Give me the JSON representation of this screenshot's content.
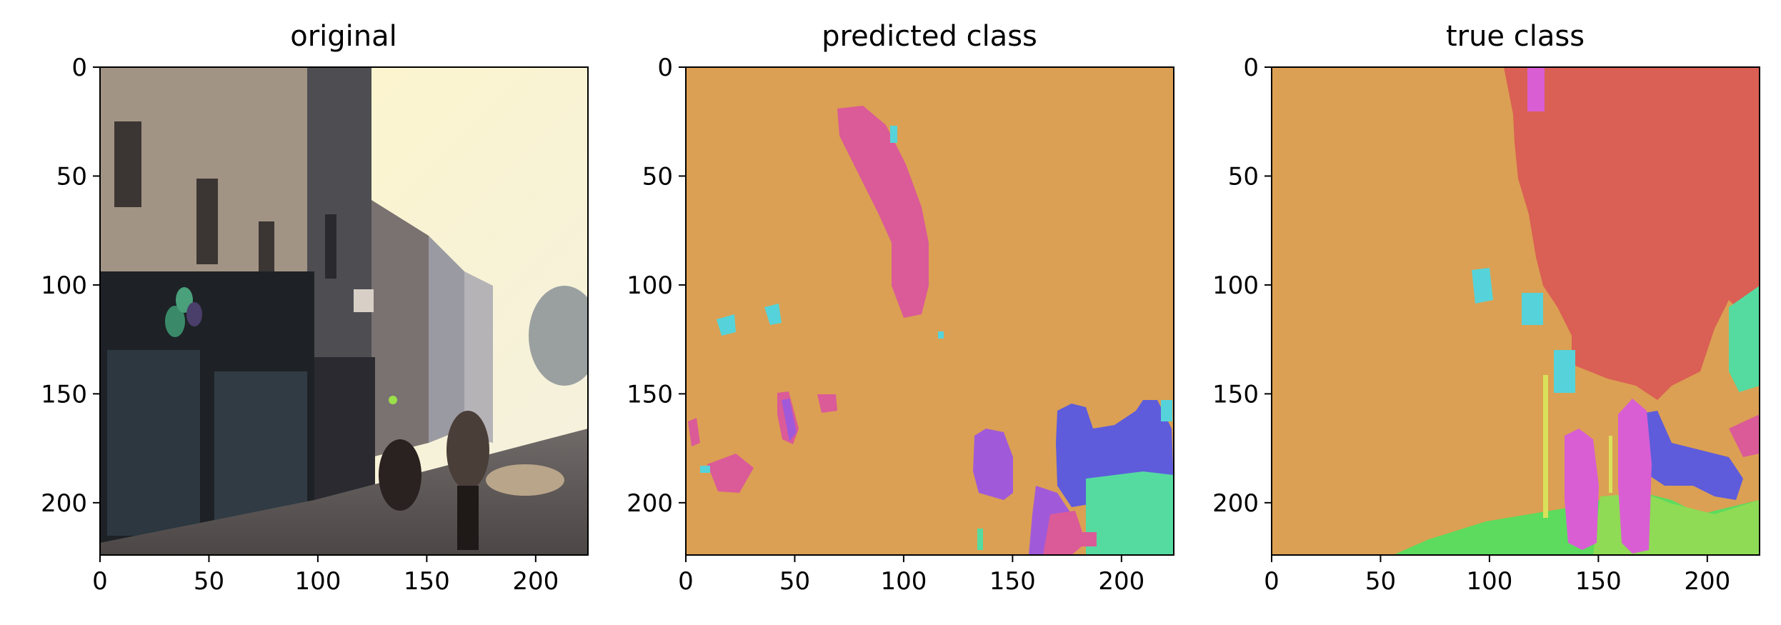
{
  "chart_data": [
    {
      "type": "heatmap",
      "title": "original",
      "xlim": [
        0,
        224
      ],
      "ylim": [
        224,
        0
      ],
      "xticks": [
        0,
        50,
        100,
        150,
        200
      ],
      "yticks": [
        0,
        50,
        100,
        150,
        200
      ],
      "image": "street scene photo"
    },
    {
      "type": "heatmap",
      "title": "predicted class",
      "xlim": [
        0,
        224
      ],
      "ylim": [
        224,
        0
      ],
      "xticks": [
        0,
        50,
        100,
        150,
        200
      ],
      "yticks": [
        0,
        50,
        100,
        150,
        200
      ],
      "image": "segmentation map"
    },
    {
      "type": "heatmap",
      "title": "true class",
      "xlim": [
        0,
        224
      ],
      "ylim": [
        224,
        0
      ],
      "xticks": [
        0,
        50,
        100,
        150,
        200
      ],
      "yticks": [
        0,
        50,
        100,
        150,
        200
      ],
      "image": "segmentation map"
    }
  ],
  "colors": {
    "background_class": "#dba053",
    "sky": "#da5f54",
    "pedestrian": "#d95ed4",
    "bicyclist": "#5e5cdb",
    "road_sign": "#56d3da",
    "vegetation": "#55dba0",
    "road": "#5cdb5e",
    "sidewalk": "#8fdb55",
    "pole": "#d9e25a",
    "tree_pink": "#db5a98",
    "car_purple": "#a05ad9"
  }
}
